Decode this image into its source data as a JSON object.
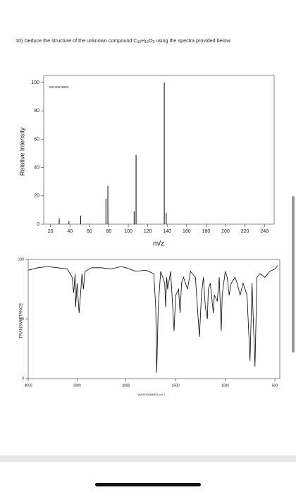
{
  "question": {
    "parts": [
      "10) Deduce the structure of the unknown compound C",
      "16",
      "H",
      "16",
      "O",
      "2",
      " using the spectra provided below:"
    ]
  },
  "chart_data": [
    {
      "type": "bar",
      "annotation": "MS-NW-6803",
      "y_label": "Relative Intensity",
      "x_label": "m/z",
      "x": [
        29,
        39,
        51,
        77,
        79,
        106,
        108,
        137,
        139
      ],
      "values": [
        4,
        2,
        6,
        18,
        27,
        9,
        49,
        100,
        8
      ],
      "color": "#000000",
      "xlim": [
        13,
        250
      ],
      "xticks": [
        20,
        40,
        60,
        80,
        100,
        120,
        140,
        160,
        180,
        200,
        220,
        240
      ],
      "ylim": [
        0,
        105
      ],
      "yticks": [
        0,
        20,
        40,
        60,
        80,
        100
      ]
    },
    {
      "type": "line",
      "y_label": "TRANSMITTANCE",
      "x_label": "WAVENUMBER-cm-1",
      "x": [
        4000,
        3800,
        3600,
        3400,
        3200,
        3100,
        3070,
        3040,
        3030,
        3000,
        2960,
        2930,
        2900,
        2870,
        2840,
        2700,
        2500,
        2300,
        2100,
        2000,
        1900,
        1800,
        1720,
        1700,
        1690,
        1675,
        1650,
        1610,
        1600,
        1590,
        1580,
        1550,
        1515,
        1500,
        1470,
        1455,
        1440,
        1420,
        1380,
        1370,
        1350,
        1300,
        1280,
        1260,
        1240,
        1220,
        1200,
        1180,
        1170,
        1150,
        1120,
        1110,
        1080,
        1060,
        1040,
        1030,
        1000,
        980,
        960,
        940,
        900,
        880,
        850,
        820,
        780,
        750,
        730,
        700,
        680,
        650,
        600,
        550,
        500,
        470
      ],
      "values": [
        91,
        93,
        94,
        93,
        92,
        85,
        72,
        88,
        60,
        80,
        55,
        70,
        88,
        75,
        90,
        93,
        93,
        92,
        94,
        93,
        90,
        91,
        88,
        60,
        5,
        60,
        90,
        80,
        60,
        85,
        75,
        90,
        40,
        70,
        75,
        55,
        80,
        85,
        75,
        80,
        90,
        85,
        60,
        35,
        70,
        85,
        60,
        50,
        75,
        80,
        55,
        70,
        65,
        85,
        40,
        70,
        90,
        85,
        70,
        80,
        85,
        80,
        70,
        80,
        70,
        15,
        80,
        10,
        85,
        88,
        85,
        90,
        92,
        95
      ],
      "color": "#000000",
      "xlim": [
        4000,
        450
      ],
      "xticks": [
        4000,
        3000,
        2000,
        1500,
        1000,
        500
      ],
      "ylim": [
        0,
        100
      ],
      "yticks": [
        0,
        50,
        100
      ]
    }
  ]
}
